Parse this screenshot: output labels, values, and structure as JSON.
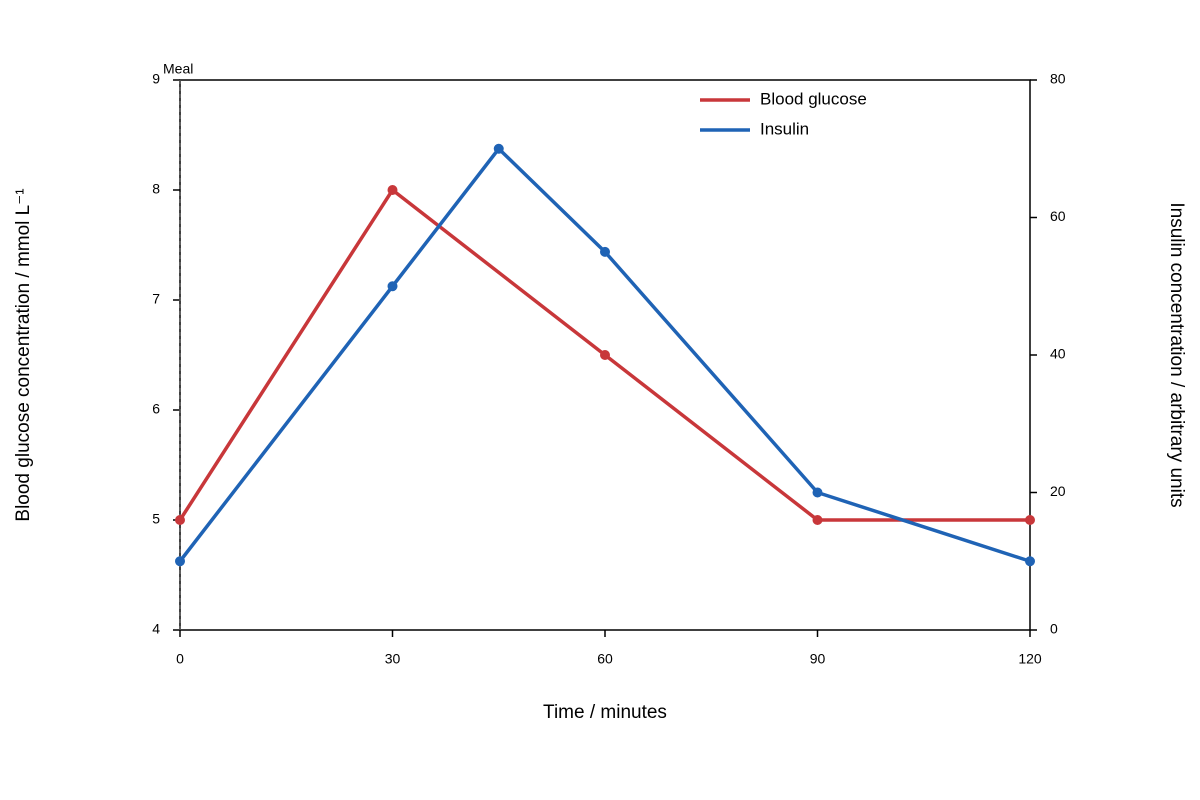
{
  "chart_data": {
    "type": "line",
    "xlabel": "Time / minutes",
    "ylabel": "Blood glucose concentration / mmol L⁻¹",
    "y2label": "Insulin concentration / arbitrary units",
    "xlim": [
      0,
      120
    ],
    "xticks": [
      0,
      30,
      60,
      90,
      120
    ],
    "ylim": [
      4,
      9
    ],
    "yticks": [
      4,
      5,
      6,
      7,
      8,
      9
    ],
    "y2lim": [
      0,
      80
    ],
    "y2ticks": [
      0,
      20,
      40,
      60,
      80
    ],
    "legend": "upper right",
    "annotation": {
      "text": "Meal",
      "x": 0
    },
    "series": [
      {
        "name": "Blood glucose",
        "color": "#c8373a",
        "x": [
          0,
          30,
          60,
          90,
          120
        ],
        "values": [
          5,
          8,
          6.5,
          5,
          5
        ]
      },
      {
        "name": "Insulin",
        "color": "#1f63b5",
        "axis": "y2",
        "x": [
          0,
          30,
          45,
          60,
          90,
          120
        ],
        "values": [
          10,
          50,
          70,
          55,
          20,
          10
        ]
      }
    ]
  }
}
